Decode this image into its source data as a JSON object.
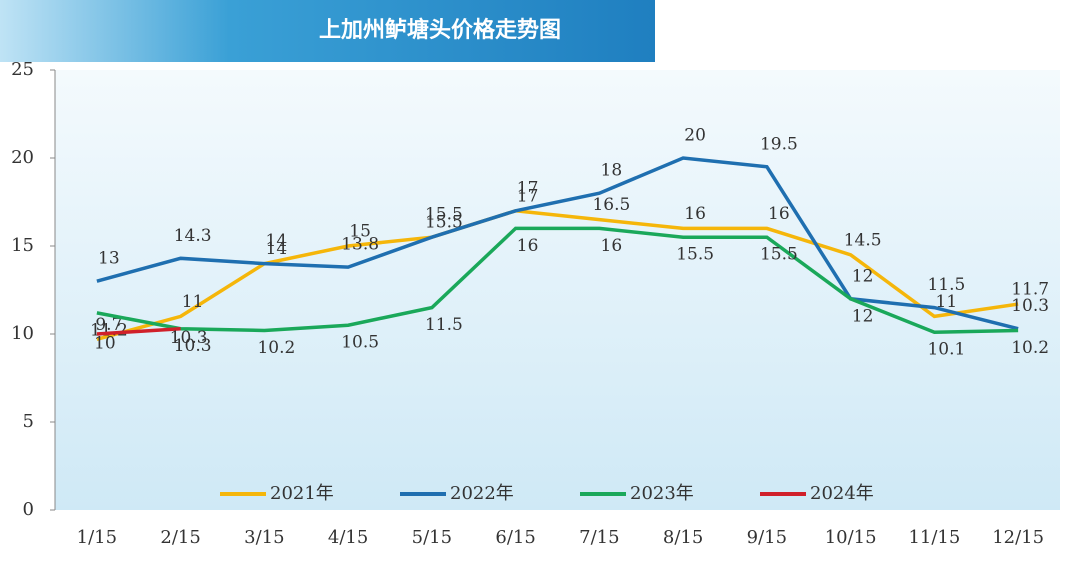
{
  "chart_data": {
    "type": "line",
    "title": "上加州鲈塘头价格走势图",
    "categories": [
      "1/15",
      "2/15",
      "3/15",
      "4/15",
      "5/15",
      "6/15",
      "7/15",
      "8/15",
      "9/15",
      "10/15",
      "11/15",
      "12/15"
    ],
    "series": [
      {
        "name": "2021年",
        "color": "#f5b60a",
        "values": [
          9.7,
          11,
          14,
          15,
          15.5,
          17,
          16.5,
          16,
          16,
          14.5,
          11,
          11.7
        ]
      },
      {
        "name": "2022年",
        "color": "#1f6fb0",
        "values": [
          13,
          14.3,
          14,
          13.8,
          15.5,
          17,
          18,
          20,
          19.5,
          12,
          11.5,
          10.3
        ]
      },
      {
        "name": "2023年",
        "color": "#1aa85a",
        "values": [
          11.2,
          10.3,
          10.2,
          10.5,
          11.5,
          16,
          16,
          15.5,
          15.5,
          12,
          10.1,
          10.2
        ]
      },
      {
        "name": "2024年",
        "color": "#d0202a",
        "values": [
          10,
          10.3,
          null,
          null,
          null,
          null,
          null,
          null,
          null,
          null,
          null,
          null
        ]
      }
    ],
    "ylim": [
      0,
      25
    ],
    "yticks": [
      0,
      5,
      10,
      15,
      20,
      25
    ],
    "legend": "bottom"
  }
}
